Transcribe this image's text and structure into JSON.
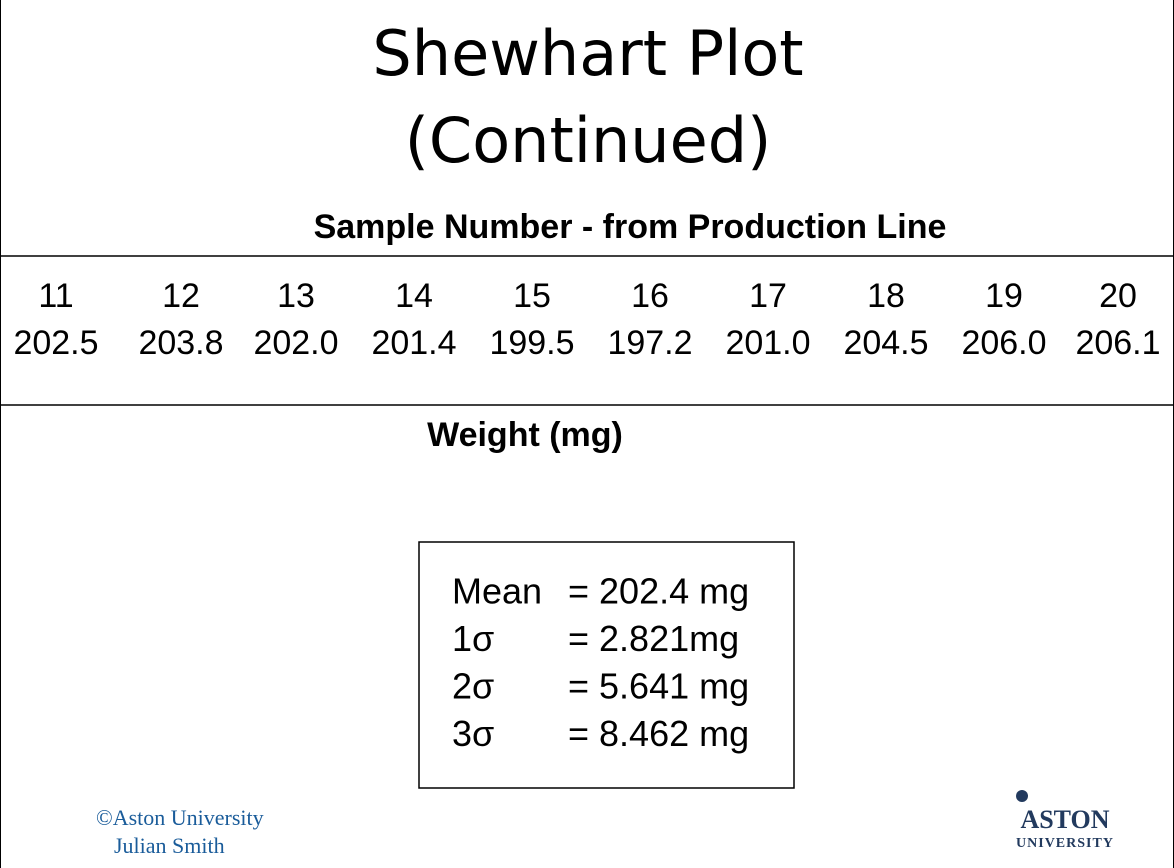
{
  "title": [
    "Shewhart Plot",
    "(Continued)"
  ],
  "table": {
    "header": "Sample Number - from Production Line",
    "samples": [
      "11",
      "12",
      "13",
      "14",
      "15",
      "16",
      "17",
      "18",
      "19",
      "20"
    ],
    "weights": [
      "202.5",
      "203.8",
      "202.0",
      "201.4",
      "199.5",
      "197.2",
      "201.0",
      "204.5",
      "206.0",
      "206.1"
    ],
    "caption": "Weight (mg)"
  },
  "stats": [
    {
      "label": "Mean",
      "value": "= 202.4 mg"
    },
    {
      "label": "1σ",
      "value": "= 2.821mg"
    },
    {
      "label": "2σ",
      "value": "= 5.641 mg"
    },
    {
      "label": "3σ",
      "value": "= 8.462 mg"
    }
  ],
  "footer": [
    "©Aston University",
    "Julian Smith"
  ],
  "logo": [
    "ASTON",
    "UNIVERSITY"
  ]
}
